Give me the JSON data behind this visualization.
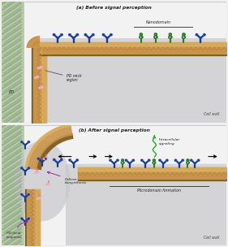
{
  "fig_bg": "#f0f0f0",
  "panel_bg": "#f0f0f0",
  "cell_interior": "#d8d8da",
  "outer_region": "#c5d5b5",
  "cell_wall_color": "#c8944a",
  "cell_wall_dark": "#8a6020",
  "cell_wall_light": "#e8b870",
  "membrane_color": "#b87828",
  "blue_color": "#1a3a9a",
  "blue_light": "#4a6aca",
  "green_color": "#2a7a2a",
  "green_light": "#4aaa4a",
  "pink_color": "#d080a0",
  "pink_light": "#f0b0c8",
  "arrow_color": "#111111",
  "label_fs": 3.8,
  "title_fs": 4.2,
  "title_top": "(a) Before signal perception",
  "title_bottom": "(b) After signal perception",
  "label_color": "#222222",
  "nanodomain_label": "Nanodomain",
  "pd_neck_label": "PD neck\nregion",
  "callose_label": "Callose\nbiosynthesis",
  "pd_local_label": "PD local\nresponse",
  "microdomain_label": "Microdomain formation",
  "intracellular_label": "Intracellular\nsignaling",
  "cell_wall_label": "Cell wall",
  "pd_label": "PD"
}
